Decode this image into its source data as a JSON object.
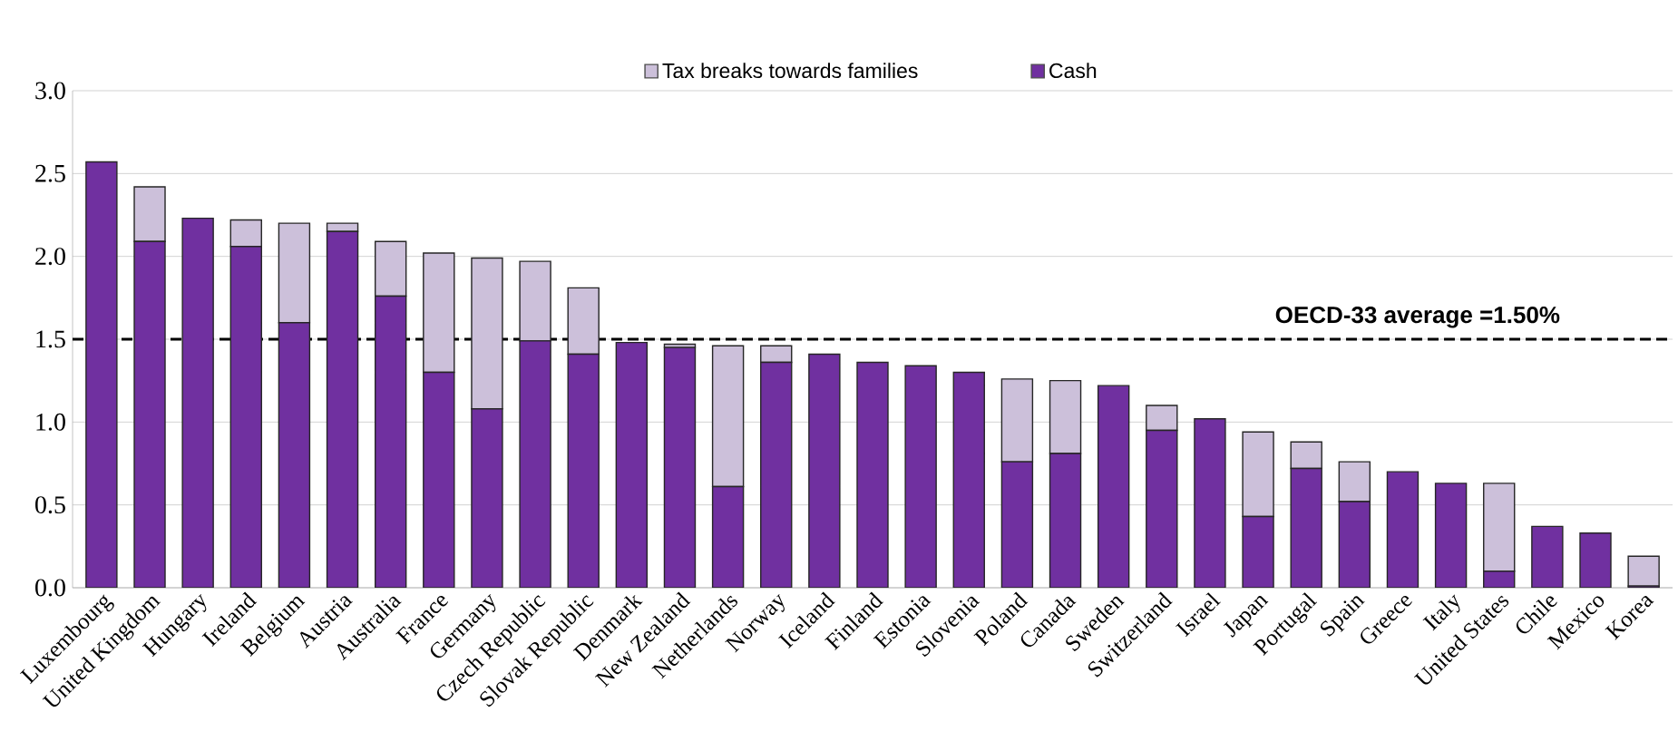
{
  "chart_data": {
    "type": "bar",
    "stacked": true,
    "categories": [
      "Luxembourg",
      "United Kingdom",
      "Hungary",
      "Ireland",
      "Belgium",
      "Austria",
      "Australia",
      "France",
      "Germany",
      "Czech Republic",
      "Slovak Republic",
      "Denmark",
      "New Zealand",
      "Netherlands",
      "Norway",
      "Iceland",
      "Finland",
      "Estonia",
      "Slovenia",
      "Poland",
      "Canada",
      "Sweden",
      "Switzerland",
      "Israel",
      "Japan",
      "Portugal",
      "Spain",
      "Greece",
      "Italy",
      "United States",
      "Chile",
      "Mexico",
      "Korea"
    ],
    "series": [
      {
        "name": "Cash",
        "color": "#7030a0",
        "values": [
          2.57,
          2.09,
          2.23,
          2.06,
          1.6,
          2.15,
          1.76,
          1.3,
          1.08,
          1.49,
          1.41,
          1.48,
          1.45,
          0.61,
          1.36,
          1.41,
          1.36,
          1.34,
          1.3,
          0.76,
          0.81,
          1.22,
          0.95,
          1.02,
          0.43,
          0.72,
          0.52,
          0.7,
          0.63,
          0.1,
          0.37,
          0.33,
          0.01
        ]
      },
      {
        "name": "Tax breaks towards families",
        "color": "#ccc0da",
        "values": [
          0,
          0.33,
          0,
          0.16,
          0.6,
          0.05,
          0.33,
          0.72,
          0.91,
          0.48,
          0.4,
          0,
          0.02,
          0.85,
          0.1,
          0,
          0,
          0,
          0,
          0.5,
          0.44,
          0,
          0.15,
          0,
          0.51,
          0.16,
          0.24,
          0,
          0,
          0.53,
          0,
          0,
          0.18
        ]
      }
    ],
    "ylim": [
      0,
      3.0
    ],
    "yticks": [
      {
        "value": 0,
        "label": "0.0"
      },
      {
        "value": 0.5,
        "label": "0.5"
      },
      {
        "value": 1,
        "label": "1.0"
      },
      {
        "value": 1.5,
        "label": "1.5"
      },
      {
        "value": 2,
        "label": "2.0"
      },
      {
        "value": 2.5,
        "label": "2.5"
      },
      {
        "value": 3,
        "label": "3.0"
      }
    ],
    "ref_lines": [
      {
        "axis": "y",
        "value": 1.5,
        "label": "OECD-33 average =1.50%",
        "line_style": "dashed",
        "color": "#000000"
      }
    ],
    "grid": "y",
    "legend": "top"
  }
}
